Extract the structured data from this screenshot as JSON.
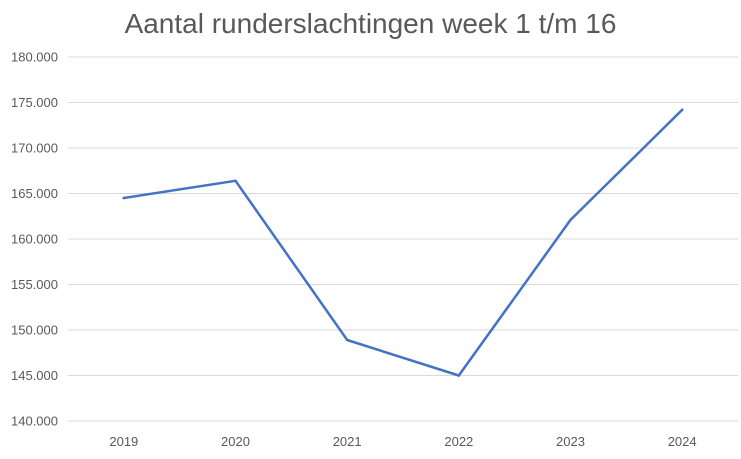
{
  "chart_data": {
    "type": "line",
    "title": "Aantal runderslachtingen week 1 t/m 16",
    "xlabel": "",
    "ylabel": "",
    "categories": [
      "2019",
      "2020",
      "2021",
      "2022",
      "2023",
      "2024"
    ],
    "series": [
      {
        "values": [
          164500,
          166400,
          148900,
          145000,
          162100,
          174200
        ],
        "color": "#4472c4"
      }
    ],
    "ylim": [
      140000,
      180000
    ],
    "ytick_labels": [
      "140.000",
      "145.000",
      "150.000",
      "155.000",
      "160.000",
      "165.000",
      "170.000",
      "175.000",
      "180.000"
    ],
    "grid": true,
    "legend": "none"
  }
}
